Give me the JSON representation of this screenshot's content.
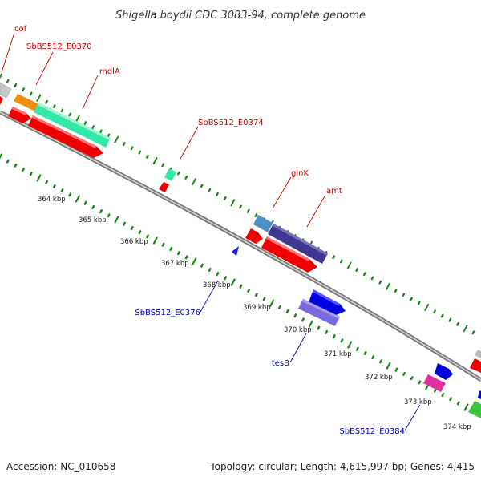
{
  "title": "Shigella boydii CDC 3083-94, complete genome",
  "footer": {
    "accession": "Accession: NC_010658",
    "summary": "Topology: circular; Length: 4,615,997 bp; Genes: 4,415"
  },
  "colors": {
    "forward_label": "#cc0000",
    "reverse_label": "#0000cc",
    "tick_green": "#1a8a1a",
    "backbone": "#888888"
  },
  "gene_labels": {
    "cof": "cof",
    "e0370": "SbBS512_E0370",
    "mdla": "mdlA",
    "e0374": "SbBS512_E0374",
    "glnk": "glnK",
    "amt": "amt",
    "e0376": "SbBS512_E0376",
    "tesb": "tesB",
    "e0384": "SbBS512_E0384"
  },
  "kbp_ticks": [
    "364 kbp",
    "365 kbp",
    "366 kbp",
    "367 kbp",
    "368 kbp",
    "369 kbp",
    "370 kbp",
    "371 kbp",
    "372 kbp",
    "373 kbp",
    "374 kbp"
  ]
}
